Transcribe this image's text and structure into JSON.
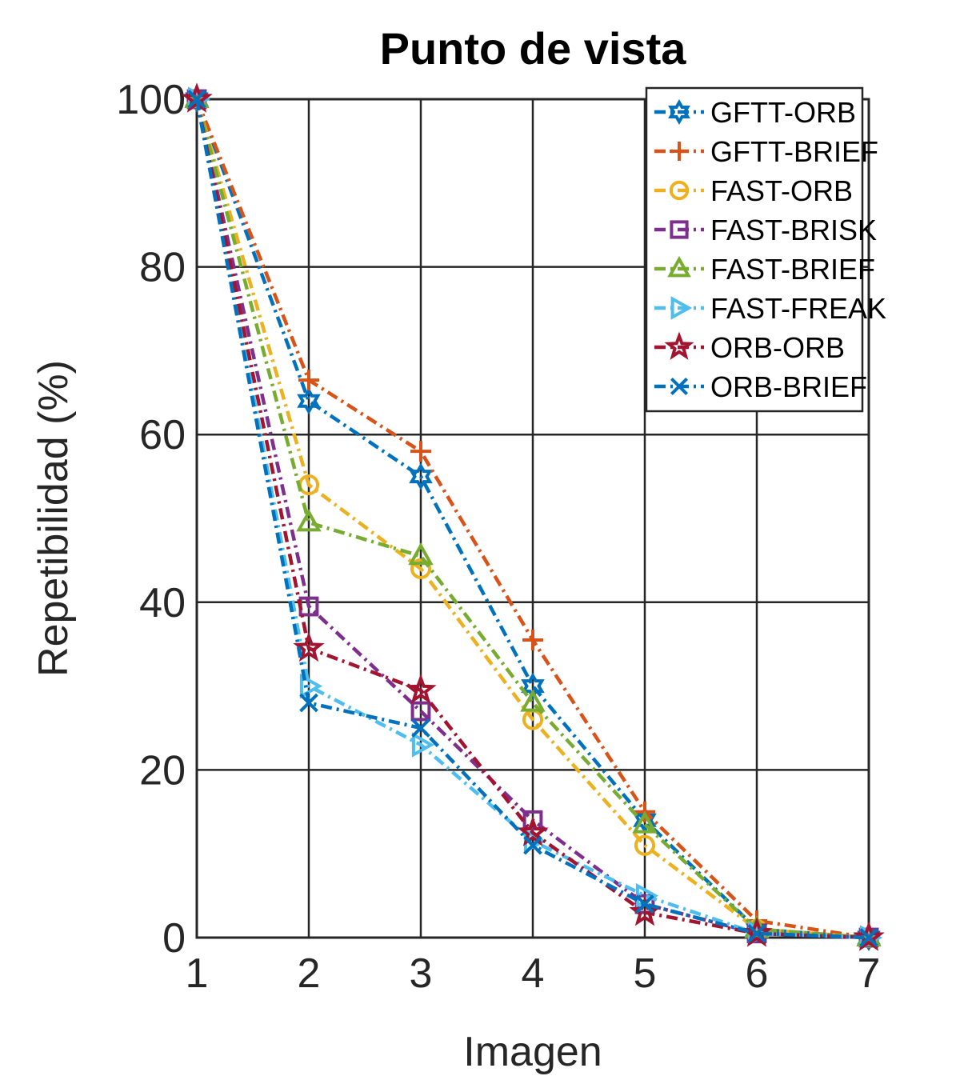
{
  "chart_data": {
    "type": "line",
    "title": "Punto de vista",
    "xlabel": "Imagen",
    "ylabel": "Repetibilidad (%)",
    "x": [
      1,
      2,
      3,
      4,
      5,
      6,
      7
    ],
    "xlim": [
      1,
      7
    ],
    "ylim": [
      0,
      100
    ],
    "xticks": [
      "1",
      "2",
      "3",
      "4",
      "5",
      "6",
      "7"
    ],
    "yticks": [
      "0",
      "20",
      "40",
      "60",
      "80",
      "100"
    ],
    "grid": true,
    "legend_position": "top-right",
    "series": [
      {
        "name": "GFTT-ORB",
        "color": "#0072BD",
        "marker": "hexagram",
        "values": [
          100,
          64,
          55,
          30,
          14,
          1,
          0
        ]
      },
      {
        "name": "GFTT-BRIEF",
        "color": "#D95319",
        "marker": "plus",
        "values": [
          100,
          66.5,
          58,
          35.5,
          15,
          2,
          0
        ]
      },
      {
        "name": "FAST-ORB",
        "color": "#EDB120",
        "marker": "circle",
        "values": [
          100,
          54,
          44,
          26,
          11,
          1,
          0
        ]
      },
      {
        "name": "FAST-BRISK",
        "color": "#7E2F8E",
        "marker": "square",
        "values": [
          100,
          39.5,
          27,
          14,
          4,
          0.5,
          0
        ]
      },
      {
        "name": "FAST-BRIEF",
        "color": "#77AC30",
        "marker": "triangle-up",
        "values": [
          100,
          49.5,
          45.5,
          28,
          13.5,
          1,
          0
        ]
      },
      {
        "name": "FAST-FREAK",
        "color": "#4DBEEE",
        "marker": "triangle-right",
        "values": [
          100,
          30,
          23,
          11.5,
          5,
          0.5,
          0
        ]
      },
      {
        "name": "ORB-ORB",
        "color": "#A2142F",
        "marker": "pentagram",
        "values": [
          100,
          34.5,
          29.5,
          12.5,
          3,
          0.5,
          0
        ]
      },
      {
        "name": "ORB-BRIEF",
        "color": "#0072BD",
        "marker": "x",
        "values": [
          100,
          28,
          25,
          11,
          4,
          0.5,
          0
        ]
      }
    ]
  }
}
